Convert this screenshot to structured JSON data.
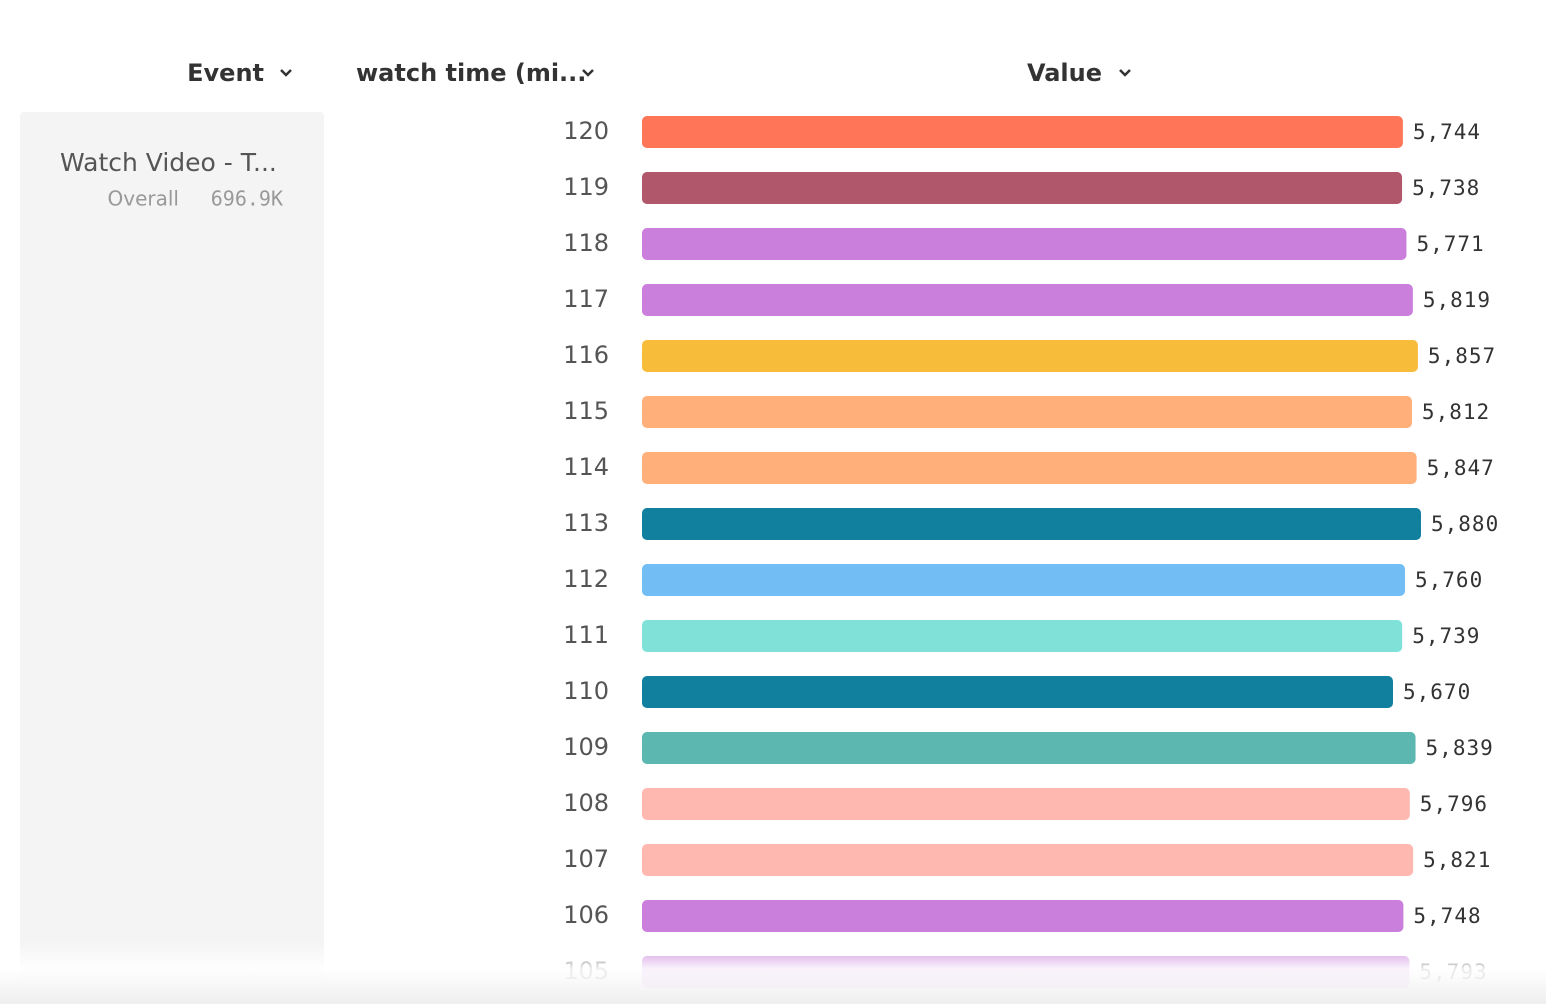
{
  "columns": [
    "Event",
    "watch time (mi...",
    "Value"
  ],
  "event": {
    "name": "Watch Video - T...",
    "overall_label": "Overall",
    "overall_value": "696.9K"
  },
  "chart_data": {
    "type": "bar",
    "orientation": "horizontal",
    "categories": [
      "120",
      "119",
      "118",
      "117",
      "116",
      "115",
      "114",
      "113",
      "112",
      "111",
      "110",
      "109",
      "108",
      "107",
      "106",
      "105"
    ],
    "values": [
      5744,
      5738,
      5771,
      5819,
      5857,
      5812,
      5847,
      5880,
      5760,
      5739,
      5670,
      5839,
      5796,
      5821,
      5748,
      5793
    ],
    "value_labels": [
      "5,744",
      "5,738",
      "5,771",
      "5,819",
      "5,857",
      "5,812",
      "5,847",
      "5,880",
      "5,760",
      "5,739",
      "5,670",
      "5,839",
      "5,796",
      "5,821",
      "5,748",
      "5,793"
    ],
    "colors": [
      "#ff7557",
      "#b0576b",
      "#c97fdb",
      "#c97fdb",
      "#f8bc3b",
      "#ffb07a",
      "#ffb07a",
      "#11809f",
      "#72bef4",
      "#80e1d9",
      "#11809f",
      "#5bb7af",
      "#ffb8b0",
      "#ffb8b0",
      "#c97fdb",
      "#c97fdb"
    ]
  }
}
